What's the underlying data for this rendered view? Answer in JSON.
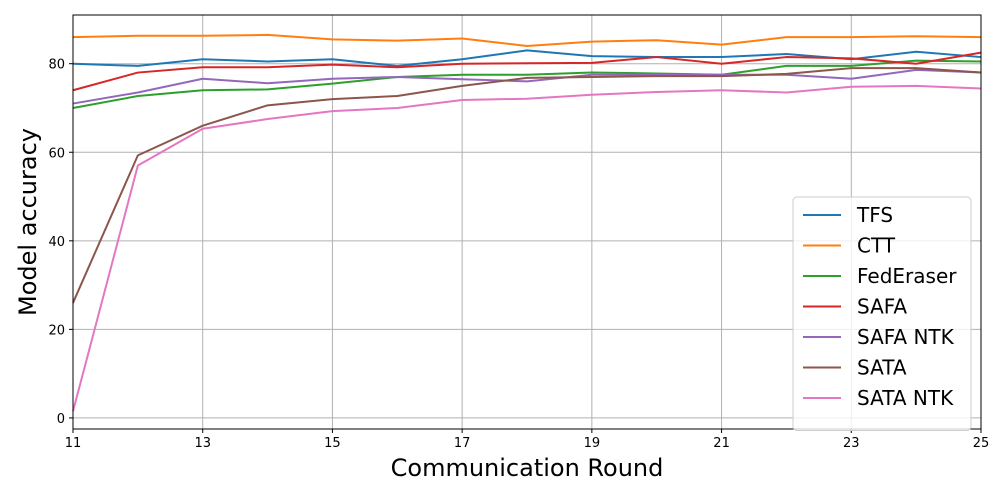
{
  "chart_data": {
    "type": "line",
    "title": "",
    "xlabel": "Communication Round",
    "ylabel": "Model accuracy",
    "xlim": [
      11,
      25
    ],
    "ylim": [
      -2.5,
      91
    ],
    "xticks": [
      11,
      13,
      15,
      17,
      19,
      21,
      23,
      25
    ],
    "yticks": [
      0,
      20,
      40,
      60,
      80
    ],
    "grid": true,
    "legend_position": "lower-right",
    "x": [
      11,
      12,
      13,
      14,
      15,
      16,
      17,
      18,
      19,
      20,
      21,
      22,
      23,
      24,
      25
    ],
    "series": [
      {
        "name": "TFS",
        "color": "#1f77b4",
        "values": [
          80.0,
          79.5,
          81.0,
          80.5,
          81.0,
          79.5,
          81.0,
          83.0,
          81.7,
          81.5,
          81.5,
          82.2,
          81.0,
          82.7,
          81.5
        ]
      },
      {
        "name": "CTT",
        "color": "#ff7f0e",
        "values": [
          86.0,
          86.3,
          86.3,
          86.5,
          85.5,
          85.2,
          85.7,
          84.0,
          85.0,
          85.3,
          84.3,
          86.0,
          86.0,
          86.2,
          86.0
        ]
      },
      {
        "name": "FedEraser",
        "color": "#2ca02c",
        "values": [
          70.0,
          72.7,
          74.0,
          74.2,
          75.5,
          77.0,
          77.5,
          77.5,
          78.0,
          77.8,
          77.5,
          79.5,
          79.5,
          80.7,
          80.5
        ]
      },
      {
        "name": "SAFA",
        "color": "#d62728",
        "values": [
          74.0,
          78.0,
          79.2,
          79.2,
          79.8,
          79.2,
          80.0,
          80.1,
          80.2,
          81.5,
          80.0,
          81.5,
          81.2,
          80.0,
          82.5
        ]
      },
      {
        "name": "SAFA NTK",
        "color": "#9467bd",
        "values": [
          71.0,
          73.5,
          76.6,
          75.6,
          76.6,
          77.0,
          76.5,
          76.0,
          77.5,
          77.5,
          77.5,
          77.5,
          76.6,
          78.6,
          78.0
        ]
      },
      {
        "name": "SATA",
        "color": "#8c564b",
        "values": [
          26.0,
          59.3,
          66.0,
          70.6,
          72.0,
          72.7,
          75.0,
          76.8,
          77.0,
          77.2,
          77.2,
          77.7,
          79.0,
          79.0,
          78.0
        ]
      },
      {
        "name": "SATA NTK",
        "color": "#e377c2",
        "values": [
          1.5,
          57.0,
          65.3,
          67.5,
          69.3,
          70.0,
          71.8,
          72.1,
          73.0,
          73.6,
          74.0,
          73.5,
          74.8,
          75.0,
          74.4
        ]
      }
    ]
  }
}
